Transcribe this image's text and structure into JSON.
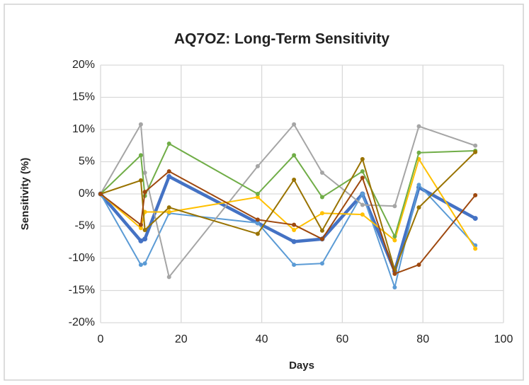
{
  "chart_data": {
    "type": "line",
    "title": "AQ7OZ: Long-Term Sensitivity",
    "x_label": "Days",
    "y_label": "Sensitivity (%)",
    "x": [
      0,
      10,
      11,
      17,
      39,
      48,
      55,
      65,
      73,
      79,
      93
    ],
    "series": [
      {
        "color": "#4472c4",
        "values": [
          0,
          -7.3,
          -7,
          2.7,
          -4.5,
          -7.4,
          -7,
          0,
          -12,
          1,
          -3.8
        ]
      },
      {
        "color": "#5b9bd5",
        "values": [
          0,
          -11,
          -10.8,
          -3,
          -4.5,
          -11,
          -10.8,
          0,
          -14.5,
          1.4,
          -8
        ]
      },
      {
        "color": "#a5a5a5",
        "values": [
          0,
          10.8,
          3.3,
          -12.9,
          4.3,
          10.8,
          3.3,
          -1.7,
          -1.9,
          10.5,
          7.5
        ]
      },
      {
        "color": "#ffc000",
        "values": [
          0,
          -5.3,
          -2.8,
          -2.8,
          -0.5,
          -5.6,
          -3,
          -3.2,
          -7.2,
          5.4,
          -8.5
        ]
      },
      {
        "color": "#70ad47",
        "values": [
          0,
          6,
          -0.3,
          7.8,
          0,
          6,
          -0.5,
          3.5,
          -6.6,
          6.4,
          6.7
        ]
      },
      {
        "color": "#997300",
        "values": [
          0,
          2.1,
          -5.6,
          -2.1,
          -6.2,
          2.2,
          -5.7,
          5.4,
          -11.8,
          -2.1,
          6.5
        ]
      },
      {
        "color": "#9e480e",
        "values": [
          0,
          -4.8,
          0.3,
          3.5,
          -4,
          -4.8,
          -7,
          2.5,
          -12.4,
          -11,
          -0.2
        ]
      }
    ],
    "xlim": [
      0,
      100
    ],
    "xticks": [
      0,
      20,
      40,
      60,
      80,
      100
    ],
    "ylim": [
      -20,
      20
    ],
    "yticks": [
      {
        "value": -20,
        "label": "-20%"
      },
      {
        "value": -15,
        "label": "-15%"
      },
      {
        "value": -10,
        "label": "-10%"
      },
      {
        "value": -5,
        "label": "-5%"
      },
      {
        "value": 0,
        "label": "0%"
      },
      {
        "value": 5,
        "label": "5%"
      },
      {
        "value": 10,
        "label": "10%"
      },
      {
        "value": 15,
        "label": "15%"
      },
      {
        "value": 20,
        "label": "20%"
      }
    ],
    "grid": true
  }
}
